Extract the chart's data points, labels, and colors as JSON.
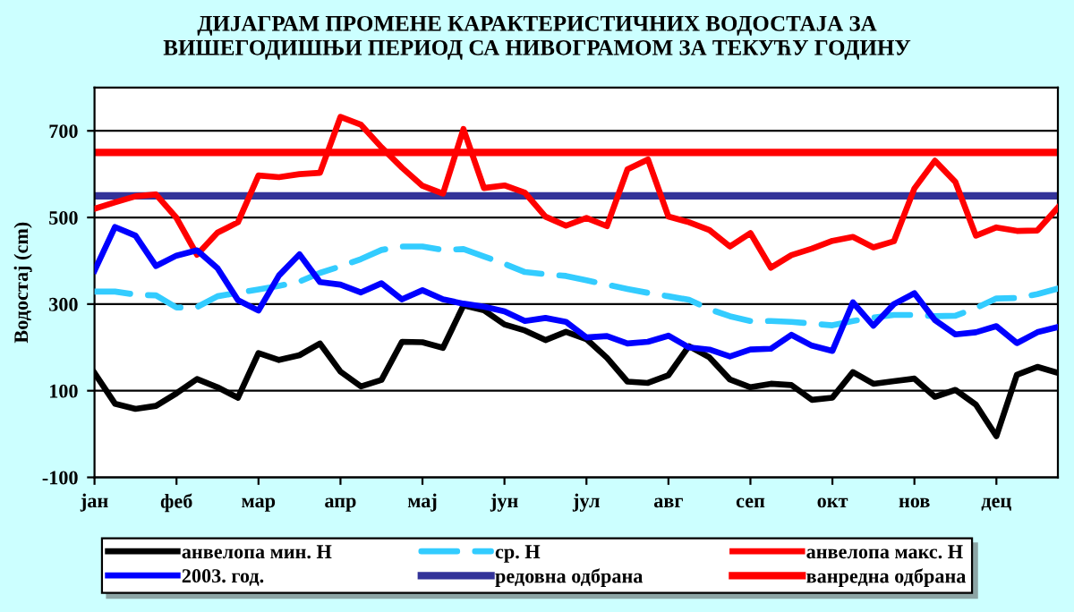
{
  "chart_data": {
    "type": "line",
    "title": "ДИЈАГРАМ ПРОМЕНЕ КАРАКТЕРИСТИЧНИХ ВОДОСТАЈА ЗА\nВИШЕГОДИШЊИ ПЕРИОД СА НИВОГРАМОМ ЗА ТЕКУЋУ ГОДИНУ",
    "ylabel": "Водостај (cm)",
    "categories": [
      "јан",
      null,
      null,
      null,
      "феб",
      null,
      null,
      null,
      "мар",
      null,
      null,
      null,
      "апр",
      null,
      null,
      null,
      "мај",
      null,
      null,
      null,
      "јун",
      null,
      null,
      null,
      "јул",
      null,
      null,
      null,
      "авг",
      null,
      null,
      null,
      "сеп",
      null,
      null,
      null,
      "окт",
      null,
      null,
      null,
      "нов",
      null,
      null,
      null,
      "дец",
      null,
      null,
      null
    ],
    "ylim": [
      -100,
      800
    ],
    "yticks": [
      -100,
      100,
      300,
      500,
      700
    ],
    "grid": "y",
    "legend": "bottom",
    "marker": "none",
    "series": [
      {
        "name": "анвелопа мин. H",
        "color": "#000000",
        "line_style": "solid",
        "values": [
          141,
          70,
          58,
          65,
          94,
          127,
          108,
          84,
          187,
          171,
          182,
          209,
          144,
          110,
          125,
          213,
          212,
          199,
          297,
          286,
          253,
          239,
          217,
          236,
          219,
          176,
          121,
          118,
          136,
          203,
          177,
          126,
          108,
          116,
          113,
          79,
          84,
          143,
          116,
          122,
          128,
          86,
          102,
          68,
          -5,
          137,
          155,
          141
        ]
      },
      {
        "name": "ср. H",
        "color": "#33ccff",
        "line_style": "dashed",
        "values": [
          329,
          329,
          322,
          320,
          292,
          293,
          318,
          326,
          334,
          342,
          352,
          372,
          387,
          404,
          425,
          433,
          433,
          425,
          427,
          410,
          393,
          374,
          369,
          365,
          355,
          345,
          335,
          326,
          318,
          310,
          288,
          272,
          261,
          261,
          259,
          255,
          251,
          261,
          269,
          275,
          275,
          272,
          273,
          291,
          313,
          314,
          323,
          336
        ]
      },
      {
        "name": "анвелопа макс. H",
        "color": "#ff0000",
        "line_style": "solid",
        "values": [
          520,
          535,
          549,
          553,
          499,
          414,
          465,
          489,
          597,
          593,
          600,
          603,
          732,
          714,
          662,
          615,
          573,
          555,
          704,
          568,
          574,
          557,
          502,
          481,
          499,
          480,
          611,
          634,
          502,
          489,
          471,
          433,
          464,
          384,
          413,
          428,
          446,
          455,
          431,
          445,
          567,
          631,
          582,
          458,
          477,
          469,
          470,
          523
        ]
      },
      {
        "name": "2003. год.",
        "color": "#0000ff",
        "line_style": "solid",
        "values": [
          377,
          478,
          458,
          388,
          412,
          424,
          383,
          309,
          285,
          366,
          415,
          351,
          345,
          327,
          348,
          311,
          332,
          311,
          301,
          294,
          283,
          261,
          268,
          259,
          223,
          226,
          209,
          213,
          227,
          200,
          195,
          179,
          195,
          197,
          229,
          204,
          192,
          304,
          250,
          300,
          325,
          263,
          230,
          235,
          249,
          210,
          235,
          247
        ]
      }
    ],
    "ref_lines": [
      {
        "axis": "y",
        "value": 550,
        "label": "редовна одбрана",
        "color": "#333399",
        "line_style": "solid"
      },
      {
        "axis": "y",
        "value": 650,
        "label": "ванредна одбрана",
        "color": "#ff0000",
        "line_style": "solid"
      }
    ]
  }
}
